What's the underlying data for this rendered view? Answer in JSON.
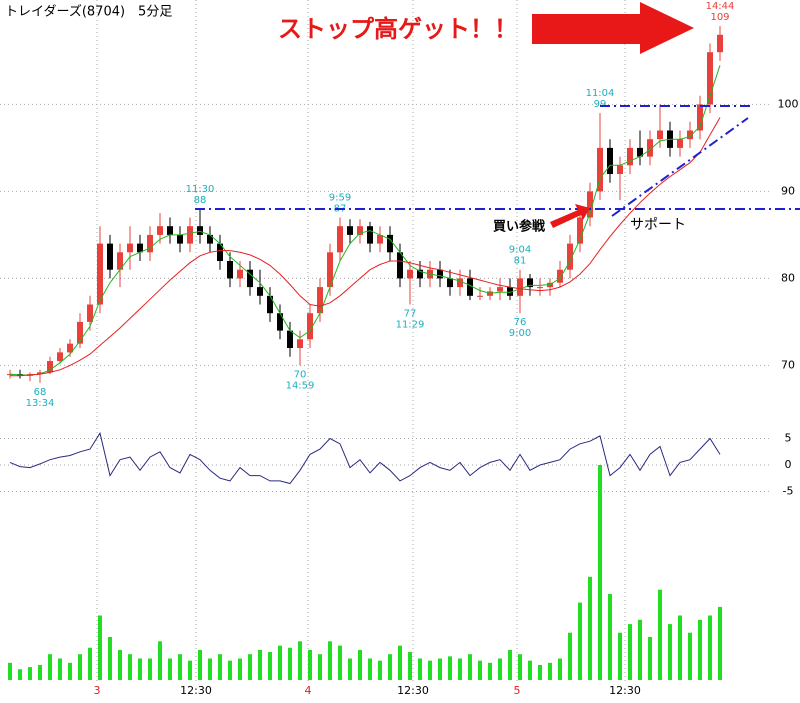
{
  "chart_data": [
    {
      "type": "candlestick",
      "title": "トレイダーズ(8704)　5分足",
      "callouts": [
        "ストップ高ゲット！！",
        "買い参戦",
        "サポート"
      ],
      "ylim": [
        64.3,
        112
      ],
      "yticks": [
        70,
        80,
        90,
        100
      ],
      "xlim": [
        0,
        72
      ],
      "grid": true,
      "up_color": "#e8403a",
      "down_color": "#000000",
      "label_color": "#1ab0c0",
      "candles": [
        {
          "o": 69,
          "h": 69.5,
          "l": 68.5,
          "c": 69
        },
        {
          "o": 69,
          "h": 69.5,
          "l": 68.5,
          "c": 68.8
        },
        {
          "o": 68.8,
          "h": 69.2,
          "l": 68.2,
          "c": 69
        },
        {
          "o": 69,
          "h": 69.5,
          "l": 68,
          "c": 69.2,
          "low_time": "13:34"
        },
        {
          "o": 69.2,
          "h": 71,
          "l": 69,
          "c": 70.5
        },
        {
          "o": 70.5,
          "h": 72,
          "l": 70.2,
          "c": 71.5
        },
        {
          "o": 71.5,
          "h": 73,
          "l": 71,
          "c": 72.5
        },
        {
          "o": 72.5,
          "h": 76,
          "l": 72,
          "c": 75
        },
        {
          "o": 75,
          "h": 78,
          "l": 74,
          "c": 77
        },
        {
          "o": 77,
          "h": 86,
          "l": 76,
          "c": 84
        },
        {
          "o": 84,
          "h": 85,
          "l": 80,
          "c": 81
        },
        {
          "o": 81,
          "h": 84,
          "l": 79,
          "c": 83
        },
        {
          "o": 83,
          "h": 86,
          "l": 81,
          "c": 84
        },
        {
          "o": 84,
          "h": 85,
          "l": 82,
          "c": 83
        },
        {
          "o": 83,
          "h": 86,
          "l": 82,
          "c": 85
        },
        {
          "o": 85,
          "h": 87.5,
          "l": 84,
          "c": 86
        },
        {
          "o": 86,
          "h": 87,
          "l": 84,
          "c": 85
        },
        {
          "o": 85,
          "h": 86,
          "l": 83,
          "c": 84
        },
        {
          "o": 84,
          "h": 87,
          "l": 83,
          "c": 86
        },
        {
          "o": 86,
          "h": 88,
          "l": 84,
          "c": 85,
          "high_time": "11:30"
        },
        {
          "o": 85,
          "h": 86,
          "l": 83,
          "c": 84
        },
        {
          "o": 84,
          "h": 85,
          "l": 81,
          "c": 82
        },
        {
          "o": 82,
          "h": 83,
          "l": 79,
          "c": 80
        },
        {
          "o": 80,
          "h": 82,
          "l": 79,
          "c": 81
        },
        {
          "o": 81,
          "h": 82,
          "l": 78,
          "c": 79
        },
        {
          "o": 79,
          "h": 81,
          "l": 77,
          "c": 78
        },
        {
          "o": 78,
          "h": 79,
          "l": 75,
          "c": 76
        },
        {
          "o": 76,
          "h": 77,
          "l": 73,
          "c": 74
        },
        {
          "o": 74,
          "h": 75,
          "l": 71,
          "c": 72
        },
        {
          "o": 72,
          "h": 74,
          "l": 70,
          "c": 73,
          "low_time": "14:59"
        },
        {
          "o": 73,
          "h": 77,
          "l": 72,
          "c": 76
        },
        {
          "o": 76,
          "h": 80,
          "l": 75,
          "c": 79
        },
        {
          "o": 79,
          "h": 84,
          "l": 78,
          "c": 83
        },
        {
          "o": 83,
          "h": 87,
          "l": 82,
          "c": 86,
          "high_time": "9:59"
        },
        {
          "o": 86,
          "h": 86.8,
          "l": 84,
          "c": 85
        },
        {
          "o": 85,
          "h": 86.8,
          "l": 84,
          "c": 86
        },
        {
          "o": 86,
          "h": 86.5,
          "l": 83,
          "c": 84
        },
        {
          "o": 84,
          "h": 86,
          "l": 83,
          "c": 85
        },
        {
          "o": 85,
          "h": 86,
          "l": 82,
          "c": 83
        },
        {
          "o": 83,
          "h": 84,
          "l": 79,
          "c": 80
        },
        {
          "o": 80,
          "h": 82,
          "l": 77,
          "c": 81,
          "low_time": "11:29"
        },
        {
          "o": 81,
          "h": 82,
          "l": 79,
          "c": 80
        },
        {
          "o": 80,
          "h": 82,
          "l": 79,
          "c": 81
        },
        {
          "o": 81,
          "h": 82,
          "l": 79,
          "c": 80
        },
        {
          "o": 80,
          "h": 81,
          "l": 78,
          "c": 79
        },
        {
          "o": 79,
          "h": 81,
          "l": 78,
          "c": 80
        },
        {
          "o": 80,
          "h": 81,
          "l": 77.5,
          "c": 78
        },
        {
          "o": 78,
          "h": 79,
          "l": 77.5,
          "c": 78
        },
        {
          "o": 78,
          "h": 79,
          "l": 77.5,
          "c": 78.5
        },
        {
          "o": 78.5,
          "h": 80,
          "l": 77.5,
          "c": 79
        },
        {
          "o": 79,
          "h": 80,
          "l": 77.5,
          "c": 78
        },
        {
          "o": 78,
          "h": 81,
          "l": 76,
          "c": 80,
          "high_time": "9:04",
          "low_time": "9:00"
        },
        {
          "o": 80,
          "h": 80.5,
          "l": 78,
          "c": 79
        },
        {
          "o": 79,
          "h": 80,
          "l": 78,
          "c": 79
        },
        {
          "o": 79,
          "h": 80,
          "l": 78,
          "c": 79.5
        },
        {
          "o": 79.5,
          "h": 82,
          "l": 79,
          "c": 81
        },
        {
          "o": 81,
          "h": 85,
          "l": 80,
          "c": 84
        },
        {
          "o": 84,
          "h": 88,
          "l": 83,
          "c": 87
        },
        {
          "o": 87,
          "h": 91,
          "l": 86,
          "c": 90
        },
        {
          "o": 90,
          "h": 99,
          "l": 89,
          "c": 95,
          "high_time": "11:04"
        },
        {
          "o": 95,
          "h": 96,
          "l": 91,
          "c": 92
        },
        {
          "o": 92,
          "h": 94,
          "l": 89,
          "c": 93
        },
        {
          "o": 93,
          "h": 96,
          "l": 92,
          "c": 95
        },
        {
          "o": 95,
          "h": 97,
          "l": 93,
          "c": 94
        },
        {
          "o": 94,
          "h": 97,
          "l": 93,
          "c": 96
        },
        {
          "o": 96,
          "h": 100,
          "l": 95,
          "c": 97
        },
        {
          "o": 97,
          "h": 98,
          "l": 94,
          "c": 95
        },
        {
          "o": 95,
          "h": 97,
          "l": 94,
          "c": 96
        },
        {
          "o": 96,
          "h": 98,
          "l": 95,
          "c": 97
        },
        {
          "o": 97,
          "h": 101,
          "l": 96,
          "c": 100
        },
        {
          "o": 100,
          "h": 107,
          "l": 99,
          "c": 106
        },
        {
          "o": 106,
          "h": 109,
          "l": 105,
          "c": 108,
          "high_time": "14:44",
          "label_color": "#e8403a"
        }
      ],
      "series": [
        {
          "name": "MA short",
          "color": "#1fb81f",
          "values": [
            69,
            68.9,
            68.9,
            69,
            69.5,
            70.3,
            71.3,
            72.8,
            74.5,
            77.5,
            79.5,
            81,
            82.5,
            83,
            83.5,
            84.5,
            85,
            85,
            85.2,
            85.4,
            85,
            84,
            82.5,
            81.5,
            80.5,
            79.5,
            78,
            76,
            74,
            73.2,
            74,
            76,
            79,
            82,
            84,
            85.2,
            85.5,
            85,
            84.5,
            83,
            81.5,
            80.8,
            80.5,
            80.3,
            80,
            79.7,
            79.2,
            78.6,
            78.3,
            78.4,
            78.4,
            78.8,
            79.2,
            79.2,
            79.3,
            80,
            82,
            84.5,
            87.5,
            91.5,
            93,
            93,
            93.5,
            94,
            94.8,
            95.8,
            96,
            96,
            96.3,
            97.5,
            101,
            104.5
          ]
        },
        {
          "name": "MA long",
          "color": "#e82020",
          "values": [
            68.8,
            68.8,
            68.9,
            69,
            69.2,
            69.5,
            70,
            70.6,
            71.3,
            72.3,
            73.3,
            74.3,
            75.4,
            76.5,
            77.6,
            78.7,
            79.8,
            80.8,
            81.8,
            82.6,
            83,
            83.2,
            83.2,
            83,
            82.7,
            82.2,
            81.5,
            80.5,
            79.3,
            78,
            77,
            76.8,
            77.2,
            78,
            79,
            80,
            81,
            81.6,
            82,
            82,
            81.8,
            81.5,
            81.2,
            81,
            80.7,
            80.4,
            80.1,
            79.8,
            79.5,
            79.2,
            79,
            78.8,
            78.7,
            78.6,
            78.7,
            79,
            79.6,
            80.5,
            81.7,
            83.3,
            84.8,
            86.2,
            87.5,
            88.7,
            89.8,
            90.8,
            91.7,
            92.5,
            93.3,
            94.5,
            96.5,
            98.5
          ]
        }
      ]
    },
    {
      "type": "line",
      "ylim": [
        -8.5,
        8.5
      ],
      "yticks": [
        5,
        0,
        -5
      ],
      "xlim": [
        0,
        72
      ],
      "grid": true,
      "color": "#2a2a80",
      "values": [
        0.5,
        -0.3,
        -0.5,
        0.2,
        1,
        1.5,
        1.8,
        2.5,
        3,
        6,
        -2,
        1,
        1.5,
        -1,
        1.5,
        2.5,
        -0.5,
        -1.5,
        2,
        1,
        -1,
        -2.5,
        -3,
        -0.5,
        -2,
        -2,
        -3,
        -3,
        -3.5,
        -1,
        2,
        3,
        5,
        4,
        -0.5,
        1,
        -1.5,
        0.5,
        -1,
        -3,
        -2,
        -0.5,
        0.5,
        -0.5,
        -1,
        0.5,
        -2,
        -0.5,
        0.5,
        1,
        -1,
        2,
        -1,
        0,
        0.5,
        1,
        3,
        4,
        4.5,
        5.5,
        -2,
        -0.5,
        2,
        -1,
        2,
        3.5,
        -2,
        0.5,
        1,
        3,
        5,
        2
      ]
    },
    {
      "type": "bar",
      "ylim": [
        0,
        100
      ],
      "xlim": [
        0,
        72
      ],
      "color": "#22dd22",
      "xticks": [
        {
          "value": 9.2,
          "label": "3",
          "color": "#e02020"
        },
        {
          "value": 19.1,
          "label": "12:30",
          "color": "#000000"
        },
        {
          "value": 30.3,
          "label": "4",
          "color": "#e02020"
        },
        {
          "value": 40.8,
          "label": "12:30",
          "color": "#000000"
        },
        {
          "value": 51.2,
          "label": "5",
          "color": "#e02020"
        },
        {
          "value": 62,
          "label": "12:30",
          "color": "#000000"
        }
      ],
      "values": [
        8,
        5,
        6,
        7,
        12,
        10,
        8,
        12,
        15,
        30,
        20,
        14,
        12,
        10,
        10,
        18,
        10,
        12,
        9,
        14,
        10,
        12,
        9,
        10,
        12,
        14,
        13,
        16,
        15,
        18,
        14,
        12,
        18,
        16,
        10,
        14,
        10,
        9,
        12,
        16,
        13,
        10,
        9,
        10,
        11,
        10,
        12,
        9,
        8,
        10,
        14,
        12,
        9,
        7,
        8,
        10,
        22,
        36,
        48,
        100,
        40,
        22,
        26,
        28,
        20,
        42,
        26,
        30,
        22,
        28,
        30,
        34
      ]
    }
  ]
}
